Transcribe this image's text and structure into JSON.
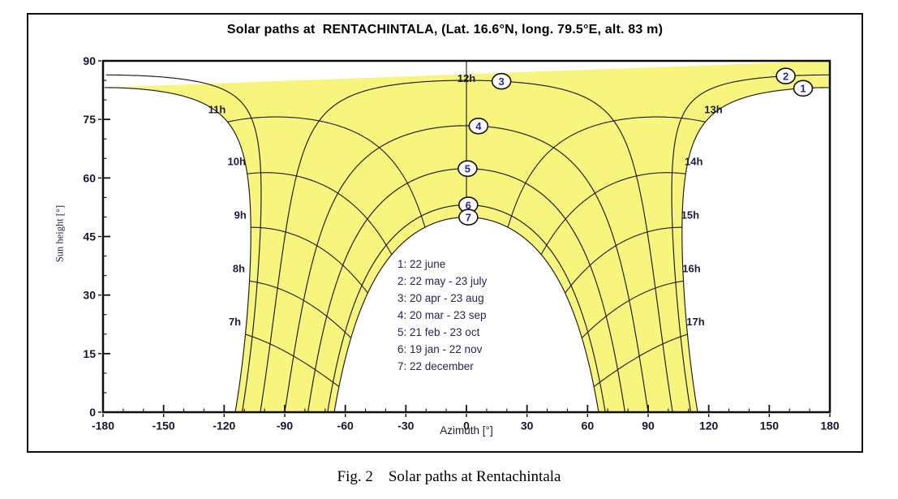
{
  "figure": {
    "title": "Solar paths at  RENTACHINTALA, (Lat. 16.6°N, long. 79.5°E, alt. 83 m)",
    "caption": "Fig. 2    Solar paths at Rentachintala"
  },
  "chart_data": {
    "type": "line",
    "title": "Solar paths at RENTACHINTALA, (Lat. 16.6°N, long. 79.5°E, alt. 83 m)",
    "xlabel": "Azimuth [°]",
    "ylabel": "Sun height [°]",
    "xlim": [
      -180,
      180
    ],
    "ylim": [
      0,
      90
    ],
    "x_major_ticks": [
      -180,
      -150,
      -120,
      -90,
      -60,
      -30,
      0,
      30,
      60,
      90,
      120,
      150,
      180
    ],
    "x_minor_step": 10,
    "y_major_ticks": [
      0,
      15,
      30,
      45,
      60,
      75,
      90
    ],
    "y_minor_step": 5,
    "grid": false,
    "legend_position": "inside-lower-center",
    "latitude_deg": 16.6,
    "sun_region_color": "#f7f57d",
    "curve_color": "#1a1a1a",
    "marker_fill_color": "#ffffff",
    "marker_number_color": "#2626a0",
    "date_curves": [
      {
        "marker": "1",
        "legend": "1: 22 june",
        "declination_deg": 23.44,
        "marker_azimuth_deg": 167.0
      },
      {
        "marker": "2",
        "legend": "2: 22 may - 23 july",
        "declination_deg": 20.2,
        "marker_azimuth_deg": 158.3
      },
      {
        "marker": "3",
        "legend": "3: 20 apr - 23 aug",
        "declination_deg": 11.6,
        "marker_azimuth_deg": 16.9
      },
      {
        "marker": "4",
        "legend": "4: 20 mar - 23 sep",
        "declination_deg": 0,
        "marker_azimuth_deg": 6.0
      },
      {
        "marker": "5",
        "legend": "5: 21 feb - 23 oct",
        "declination_deg": -11.0,
        "marker_azimuth_deg": 0.5
      },
      {
        "marker": "6",
        "legend": "6: 19 jan - 22 nov",
        "declination_deg": -20.3,
        "marker_azimuth_deg": 0.9
      },
      {
        "marker": "7",
        "legend": "7: 22 december",
        "declination_deg": -23.44,
        "marker_azimuth_deg": 0.9
      }
    ],
    "hour_lines": [
      {
        "hour": 7,
        "label": "7h"
      },
      {
        "hour": 8,
        "label": "8h"
      },
      {
        "hour": 9,
        "label": "9h"
      },
      {
        "hour": 10,
        "label": "10h"
      },
      {
        "hour": 11,
        "label": "11h"
      },
      {
        "hour": 12,
        "label": "12h"
      },
      {
        "hour": 13,
        "label": "13h"
      },
      {
        "hour": 14,
        "label": "14h"
      },
      {
        "hour": 15,
        "label": "15h"
      },
      {
        "hour": 16,
        "label": "16h"
      },
      {
        "hour": 17,
        "label": "17h"
      }
    ]
  }
}
